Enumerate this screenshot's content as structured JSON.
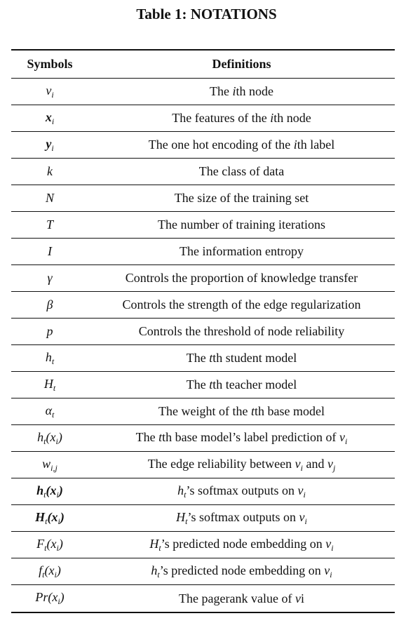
{
  "caption": "Table 1: NOTATIONS",
  "headers": {
    "symbols": "Symbols",
    "definitions": "Definitions"
  },
  "rows": [
    {
      "symbol": [
        "v",
        "i"
      ],
      "sym_bold": false,
      "definition": [
        "The ",
        "i",
        "th node"
      ]
    },
    {
      "symbol": [
        "x",
        "i"
      ],
      "sym_bold": true,
      "definition": [
        "The features of the ",
        "i",
        "th node"
      ]
    },
    {
      "symbol": [
        "y",
        "i"
      ],
      "sym_bold": true,
      "definition": [
        "The one hot encoding of the ",
        "i",
        "th label"
      ]
    },
    {
      "symbol": [
        "k",
        ""
      ],
      "sym_bold": false,
      "definition": [
        "The class of data",
        "",
        ""
      ]
    },
    {
      "symbol": [
        "N",
        ""
      ],
      "sym_bold": false,
      "definition": [
        "The size of the training set",
        "",
        ""
      ]
    },
    {
      "symbol": [
        "T",
        ""
      ],
      "sym_bold": false,
      "definition": [
        "The number of training iterations",
        "",
        ""
      ]
    },
    {
      "symbol": [
        "I",
        ""
      ],
      "sym_bold": false,
      "definition": [
        "The information entropy",
        "",
        ""
      ]
    },
    {
      "symbol": [
        "γ",
        ""
      ],
      "sym_bold": false,
      "definition": [
        "Controls the proportion of knowledge transfer",
        "",
        ""
      ]
    },
    {
      "symbol": [
        "β",
        ""
      ],
      "sym_bold": false,
      "definition": [
        "Controls the strength of the edge regularization",
        "",
        ""
      ]
    },
    {
      "symbol": [
        "p",
        ""
      ],
      "sym_bold": false,
      "definition": [
        "Controls the threshold of node reliability",
        "",
        ""
      ]
    },
    {
      "symbol": [
        "h",
        "t"
      ],
      "sym_bold": false,
      "definition": [
        "The ",
        "t",
        "th student model"
      ]
    },
    {
      "symbol": [
        "H",
        "t"
      ],
      "sym_bold": false,
      "definition": [
        "The ",
        "t",
        "th teacher model"
      ]
    },
    {
      "symbol": [
        "α",
        "t"
      ],
      "sym_bold": false,
      "definition": [
        "The weight of the ",
        "t",
        "th base model"
      ]
    },
    {
      "symbol": [
        "h",
        "t",
        "(x",
        "i",
        ")"
      ],
      "sym_bold": false,
      "definition": [
        "The ",
        "t",
        "th base model’s label prediction of ",
        "v",
        "i"
      ]
    },
    {
      "symbol": [
        "w",
        "i,j"
      ],
      "sym_bold": false,
      "definition": [
        "The edge reliability between ",
        "v",
        "i",
        " and ",
        "v",
        "j"
      ]
    },
    {
      "symbol": [
        "h",
        "t",
        "(x",
        "i",
        ")"
      ],
      "sym_bold": true,
      "definition": [
        "h",
        "t",
        "’s softmax outputs on ",
        "v",
        "i"
      ]
    },
    {
      "symbol": [
        "H",
        "t",
        "(x",
        "i",
        ")"
      ],
      "sym_bold": true,
      "definition": [
        "H",
        "t",
        "’s softmax outputs on ",
        "v",
        "i"
      ]
    },
    {
      "symbol": [
        "F",
        "t",
        "(x",
        "i",
        ")"
      ],
      "sym_bold": false,
      "definition": [
        "H",
        "t",
        "’s predicted node embedding on ",
        "v",
        "i"
      ]
    },
    {
      "symbol": [
        "f",
        "t",
        "(x",
        "i",
        ")"
      ],
      "sym_bold": false,
      "definition": [
        "h",
        "t",
        "’s predicted node embedding on ",
        "v",
        "i"
      ]
    },
    {
      "symbol": [
        "Pr",
        "",
        "(x",
        "i",
        ")"
      ],
      "sym_bold": false,
      "definition": [
        "The pagerank value of ",
        "v",
        "i"
      ]
    }
  ]
}
